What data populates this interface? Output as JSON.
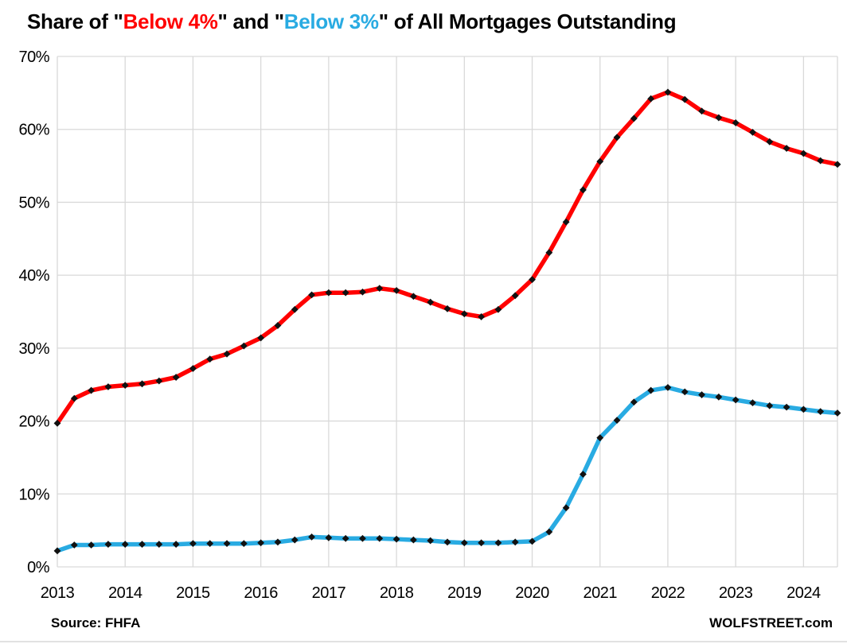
{
  "title": {
    "full_text": "Share of \"Below 4%\" and \"Below 3%\" of All Mortgages Outstanding",
    "parts": [
      {
        "text": "Share of \"",
        "color": "#000000"
      },
      {
        "text": "Below 4%",
        "color": "#FF0000"
      },
      {
        "text": "\" and \"",
        "color": "#000000"
      },
      {
        "text": "Below 3%",
        "color": "#29ABE2"
      },
      {
        "text": "\" of All Mortgages Outstanding",
        "color": "#000000"
      }
    ]
  },
  "footer": {
    "source": "Source: FHFA",
    "brand": "WOLFSTREET.com"
  },
  "chart_data": {
    "type": "line",
    "frequency": "quarterly",
    "x_start": "2013-Q1",
    "x_end": "2024-Q3",
    "categories_years": [
      "2013",
      "2014",
      "2015",
      "2016",
      "2017",
      "2018",
      "2019",
      "2020",
      "2021",
      "2022",
      "2023",
      "2024"
    ],
    "yticks": [
      "0%",
      "10%",
      "20%",
      "30%",
      "40%",
      "50%",
      "60%",
      "70%"
    ],
    "ylim": [
      0,
      70
    ],
    "grid": true,
    "grid_color": "#D9D9D9",
    "marker": "black-diamond",
    "marker_color": "#111111",
    "legend_position": "none (series named in title)",
    "series": [
      {
        "name": "Below 4%",
        "color": "#FF0000",
        "values": [
          19.7,
          23.1,
          24.2,
          24.7,
          24.9,
          25.1,
          25.5,
          26.0,
          27.2,
          28.5,
          29.2,
          30.3,
          31.4,
          33.1,
          35.3,
          37.3,
          37.6,
          37.6,
          37.7,
          38.2,
          37.9,
          37.1,
          36.3,
          35.4,
          34.7,
          34.3,
          35.3,
          37.2,
          39.4,
          43.1,
          47.3,
          51.7,
          55.6,
          58.9,
          61.5,
          64.2,
          65.1,
          64.1,
          62.5,
          61.6,
          60.9,
          59.6,
          58.3,
          57.4,
          56.7,
          55.7,
          55.2
        ]
      },
      {
        "name": "Below 3%",
        "color": "#29ABE2",
        "values": [
          2.2,
          3.0,
          3.0,
          3.1,
          3.1,
          3.1,
          3.1,
          3.1,
          3.2,
          3.2,
          3.2,
          3.2,
          3.3,
          3.4,
          3.7,
          4.1,
          4.0,
          3.9,
          3.9,
          3.9,
          3.8,
          3.7,
          3.6,
          3.4,
          3.3,
          3.3,
          3.3,
          3.4,
          3.5,
          4.8,
          8.1,
          12.7,
          17.7,
          20.1,
          22.6,
          24.2,
          24.6,
          24.0,
          23.6,
          23.3,
          22.9,
          22.5,
          22.1,
          21.9,
          21.6,
          21.3,
          21.1
        ]
      }
    ]
  }
}
